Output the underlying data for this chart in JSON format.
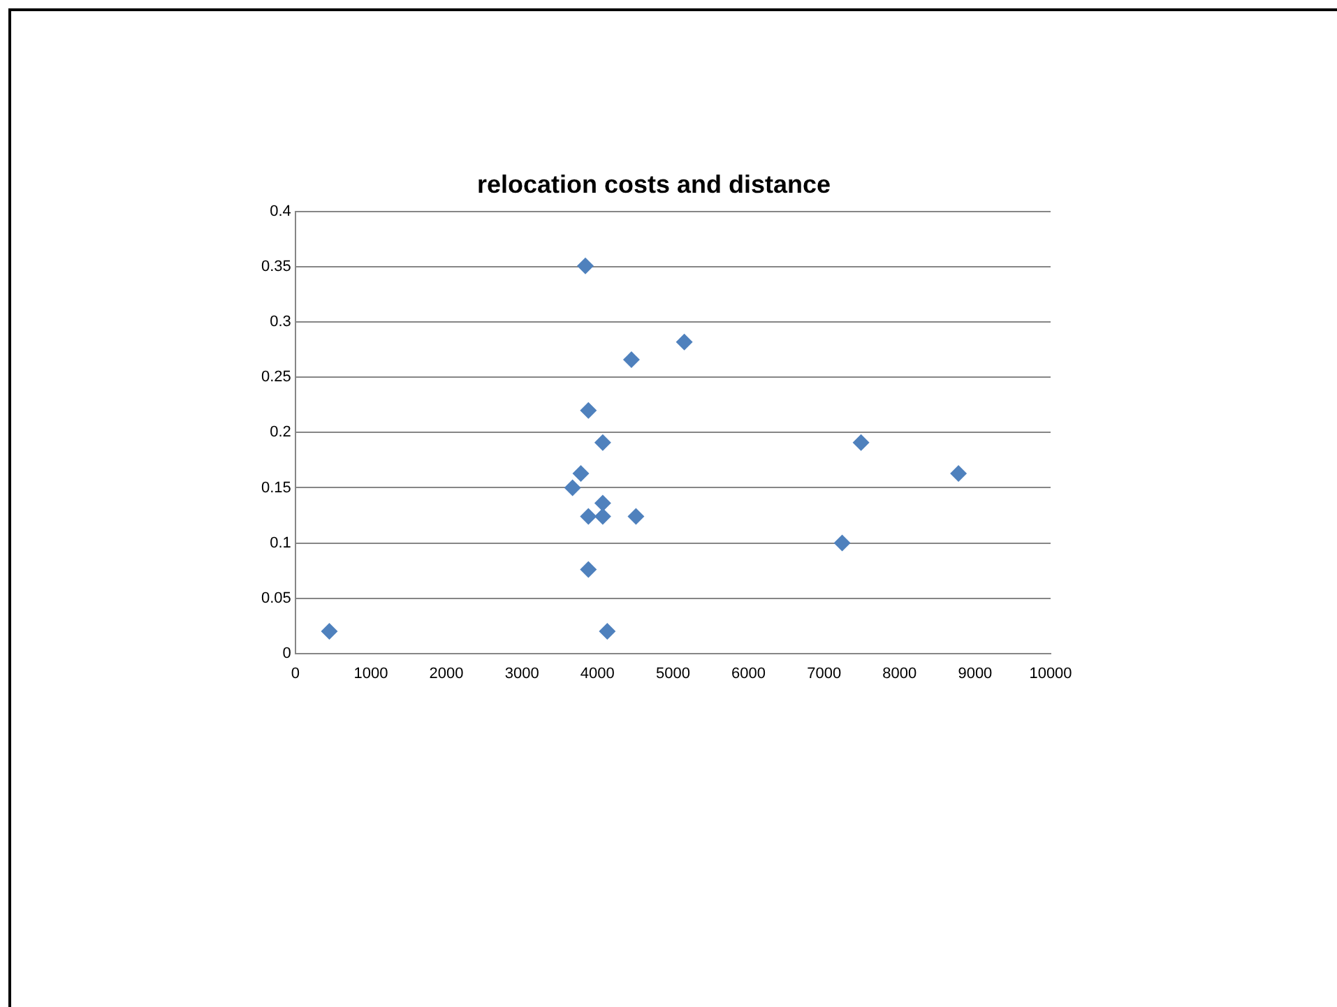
{
  "chart_data": {
    "type": "scatter",
    "title": "relocation costs and distance",
    "marker": "diamond",
    "grid": "y",
    "legend": false,
    "xlim": [
      0,
      10000
    ],
    "xticks": [
      0,
      1000,
      2000,
      3000,
      4000,
      5000,
      6000,
      7000,
      8000,
      9000,
      10000
    ],
    "ylim": [
      0,
      0.4
    ],
    "yticks": [
      0,
      0.05,
      0.1,
      0.15,
      0.2,
      0.25,
      0.3,
      0.35,
      0.4
    ],
    "series": [
      {
        "color": "#4f81bd",
        "x": [
          450,
          3840,
          5150,
          4450,
          3880,
          4070,
          7490,
          3780,
          8780,
          3670,
          4070,
          3880,
          4070,
          4510,
          7240,
          3880,
          4130
        ],
        "values": [
          0.02,
          0.351,
          0.282,
          0.266,
          0.22,
          0.191,
          0.191,
          0.163,
          0.163,
          0.15,
          0.136,
          0.124,
          0.124,
          0.124,
          0.1,
          0.076,
          0.02
        ]
      }
    ]
  }
}
